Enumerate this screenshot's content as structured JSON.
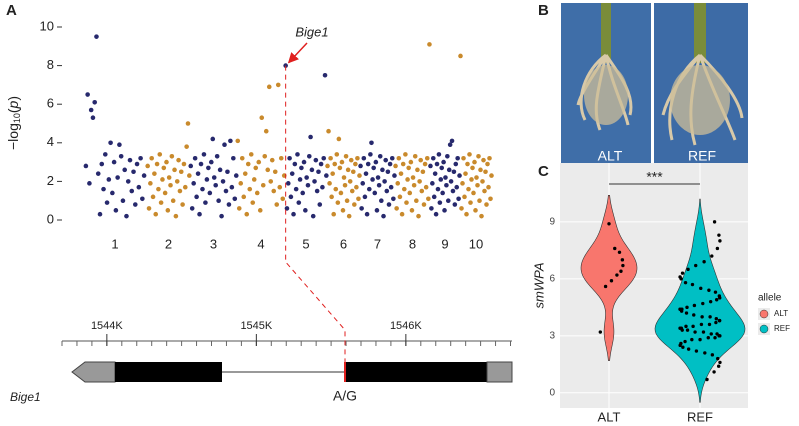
{
  "panels": [
    "A",
    "B",
    "C"
  ],
  "photo": {
    "labels": [
      "ALT",
      "REF"
    ]
  },
  "gene": {
    "name": "Bige1",
    "snp": "A/G",
    "snp_position": 1545593,
    "xlim": [
      1543700,
      1546710
    ],
    "xticks": [
      {
        "value": 1544000,
        "label": "1544K"
      },
      {
        "value": 1545000,
        "label": "1545K"
      },
      {
        "value": 1546000,
        "label": "1546K"
      }
    ]
  },
  "chart_data": [
    {
      "type": "manhattan",
      "ylabel": {
        "main": "−log",
        "sub": "10",
        "open": "(",
        "var": "p",
        "close": ")"
      },
      "annotation": "Bige1",
      "categories": [
        "1",
        "2",
        "3",
        "4",
        "5",
        "6",
        "7",
        "8",
        "9",
        "10"
      ],
      "colors": [
        "#27296d",
        "#c98a2c"
      ],
      "ylim": [
        0,
        10
      ],
      "yticks": [
        0,
        2,
        4,
        6,
        8,
        10
      ],
      "points": [
        [
          2.8,
          6.5,
          1.9,
          5.7,
          5.3,
          6.1,
          9.5,
          2.4,
          0.3,
          2.9,
          1.6,
          3.4,
          0.9,
          2.1,
          4.0,
          1.4,
          3.0,
          0.5,
          2.2,
          3.9,
          3.3,
          1.0,
          2.6,
          0.2,
          2.0,
          3.1,
          1.5,
          2.5,
          0.8,
          2.9,
          1.7,
          3.2,
          1.1,
          2.3
        ],
        [
          2.8,
          0.6,
          1.9,
          3.2,
          1.2,
          2.4,
          0.3,
          2.9,
          1.6,
          3.4,
          0.9,
          2.1,
          2.7,
          1.4,
          3.0,
          0.5,
          2.2,
          1.8,
          3.3,
          1.0,
          2.6,
          0.2,
          2.0,
          3.1,
          1.5,
          2.5,
          0.8,
          2.9,
          1.7,
          3.8,
          5.0,
          2.3
        ],
        [
          2.8,
          0.6,
          1.9,
          3.2,
          1.2,
          2.4,
          0.3,
          2.9,
          1.6,
          3.4,
          0.9,
          2.1,
          2.7,
          1.4,
          3.0,
          4.2,
          2.2,
          1.8,
          3.3,
          1.0,
          2.6,
          0.2,
          2.0,
          3.9,
          1.5,
          2.5,
          0.8,
          4.1,
          1.7,
          3.2,
          1.1,
          2.3
        ],
        [
          4.1,
          0.6,
          1.9,
          3.2,
          1.2,
          2.4,
          0.3,
          2.9,
          1.6,
          3.4,
          0.9,
          2.1,
          2.7,
          1.4,
          3.0,
          0.5,
          5.3,
          1.8,
          3.3,
          4.6,
          2.6,
          6.9,
          2.0,
          3.1,
          1.5,
          2.5,
          0.8,
          7.0,
          1.7,
          3.2,
          1.1,
          2.3
        ],
        [
          8.0,
          0.6,
          1.9,
          3.2,
          1.2,
          2.4,
          0.3,
          2.9,
          1.6,
          3.4,
          0.9,
          2.1,
          2.7,
          1.4,
          3.0,
          0.5,
          2.2,
          1.8,
          3.3,
          4.3,
          2.6,
          0.2,
          2.0,
          3.1,
          1.5,
          2.5,
          0.8,
          2.9,
          1.7,
          3.2,
          7.5,
          2.3
        ],
        [
          2.8,
          4.6,
          1.9,
          3.2,
          1.2,
          2.4,
          0.3,
          2.9,
          1.6,
          3.4,
          0.9,
          4.2,
          2.7,
          1.4,
          3.0,
          0.5,
          2.2,
          1.8,
          3.3,
          1.0,
          2.6,
          0.2,
          2.0,
          3.1,
          1.5,
          2.5,
          0.8,
          2.9,
          1.7,
          3.2,
          1.1,
          2.3
        ],
        [
          2.8,
          0.6,
          1.9,
          3.2,
          1.2,
          2.4,
          0.3,
          2.9,
          1.6,
          3.4,
          4.0,
          2.1,
          2.7,
          1.4,
          3.0,
          0.5,
          2.2,
          1.8,
          3.3,
          1.0,
          2.6,
          0.2,
          2.0,
          3.1,
          1.5,
          2.5,
          0.8,
          2.9,
          1.7,
          3.2,
          1.1,
          2.3
        ],
        [
          2.8,
          0.6,
          1.9,
          3.2,
          1.2,
          2.4,
          0.3,
          2.9,
          1.6,
          3.4,
          0.9,
          2.1,
          2.7,
          1.4,
          3.0,
          0.5,
          2.2,
          1.8,
          3.3,
          1.0,
          2.6,
          0.2,
          2.0,
          3.1,
          1.5,
          2.5,
          0.8,
          2.9,
          1.7,
          3.2,
          1.1,
          9.1
        ],
        [
          2.8,
          0.6,
          1.9,
          3.2,
          1.2,
          2.4,
          0.3,
          2.9,
          1.6,
          3.4,
          0.9,
          2.1,
          2.7,
          1.4,
          3.0,
          0.5,
          2.2,
          1.8,
          3.3,
          1.0,
          2.6,
          3.9,
          2.0,
          4.1,
          1.5,
          2.5,
          0.8,
          2.9,
          1.7,
          3.2,
          1.1,
          2.3
        ],
        [
          8.5,
          0.6,
          1.9,
          3.2,
          1.2,
          2.4,
          0.3,
          2.9,
          1.6,
          3.4,
          0.9,
          2.1,
          2.7,
          1.4,
          3.0,
          0.5,
          2.2,
          1.8,
          3.3,
          1.0,
          2.6,
          0.2,
          2.0,
          3.1,
          1.5,
          2.5,
          0.8,
          2.9,
          1.7,
          3.2,
          1.1,
          2.3
        ]
      ]
    },
    {
      "type": "violin",
      "ylabel": "smWPA",
      "legend_title": "allele",
      "significance": "***",
      "categories": [
        "ALT",
        "REF"
      ],
      "ylim": [
        -0.8,
        12.1
      ],
      "yticks": [
        0,
        3,
        6,
        9
      ],
      "grid": true,
      "series": [
        {
          "name": "ALT",
          "color": "#f8766d",
          "values": [
            8.9,
            7.6,
            7.4,
            7.0,
            6.7,
            6.4,
            6.2,
            5.9,
            5.6,
            3.2
          ]
        },
        {
          "name": "REF",
          "color": "#00bfc4",
          "values": [
            9.0,
            8.3,
            8.0,
            7.6,
            7.2,
            6.9,
            6.7,
            6.5,
            6.3,
            6.1,
            6.0,
            5.8,
            5.7,
            5.5,
            5.4,
            5.3,
            5.1,
            5.0,
            4.9,
            4.8,
            4.7,
            4.6,
            4.5,
            4.4,
            4.4,
            4.3,
            4.2,
            4.1,
            4.0,
            4.0,
            3.9,
            3.8,
            3.8,
            3.7,
            3.6,
            3.6,
            3.5,
            3.5,
            3.4,
            3.4,
            3.3,
            3.3,
            3.2,
            3.2,
            3.1,
            3.1,
            3.0,
            3.0,
            2.9,
            2.9,
            2.8,
            2.8,
            2.7,
            2.6,
            2.5,
            2.4,
            2.3,
            2.2,
            2.1,
            2.0,
            1.8,
            1.6,
            1.4,
            1.1,
            0.7
          ]
        }
      ]
    }
  ]
}
